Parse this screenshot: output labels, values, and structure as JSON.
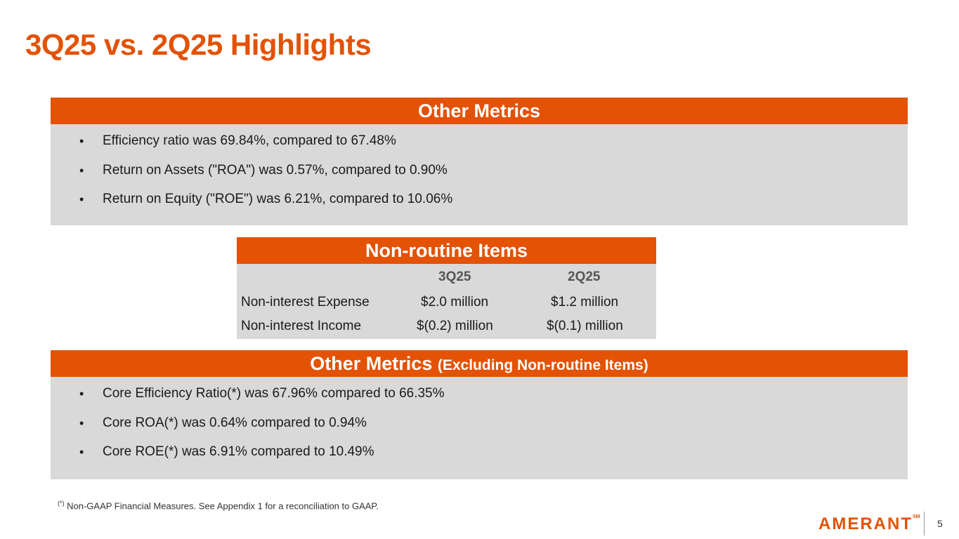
{
  "slide": {
    "title": "3Q25 vs. 2Q25 Highlights",
    "page_number": "5",
    "footnote_marker": "(*)",
    "footnote_text": " Non-GAAP Financial Measures. See Appendix 1 for a reconciliation to GAAP.",
    "logo_text": "AMERANT",
    "logo_mark": "SM"
  },
  "other_metrics": {
    "header": "Other Metrics",
    "bullet_symbol": "•",
    "items": [
      "Efficiency ratio was 69.84%, compared to 67.48%",
      "Return on Assets (\"ROA\") was 0.57%, compared to 0.90%",
      "Return on Equity (\"ROE\") was  6.21%, compared to 10.06%"
    ]
  },
  "non_routine": {
    "header": "Non-routine Items",
    "columns": [
      "3Q25",
      "2Q25"
    ],
    "rows": [
      {
        "label": "Non-interest Expense",
        "q3": "$2.0 million",
        "q2": "$1.2 million"
      },
      {
        "label": "Non-interest Income",
        "q3": "$(0.2) million",
        "q2": "$(0.1) million"
      }
    ]
  },
  "other_metrics_excl": {
    "header": "Other Metrics",
    "header_sub": "(Excluding Non-routine Items)",
    "items": [
      "Core Efficiency Ratio(*) was 67.96% compared to 66.35%",
      "Core ROA(*)  was 0.64% compared to 0.94%",
      "Core ROE(*)  was 6.91% compared to 10.49%"
    ]
  },
  "colors": {
    "accent": "#e35205",
    "panel_bg": "#d9d9d9"
  }
}
